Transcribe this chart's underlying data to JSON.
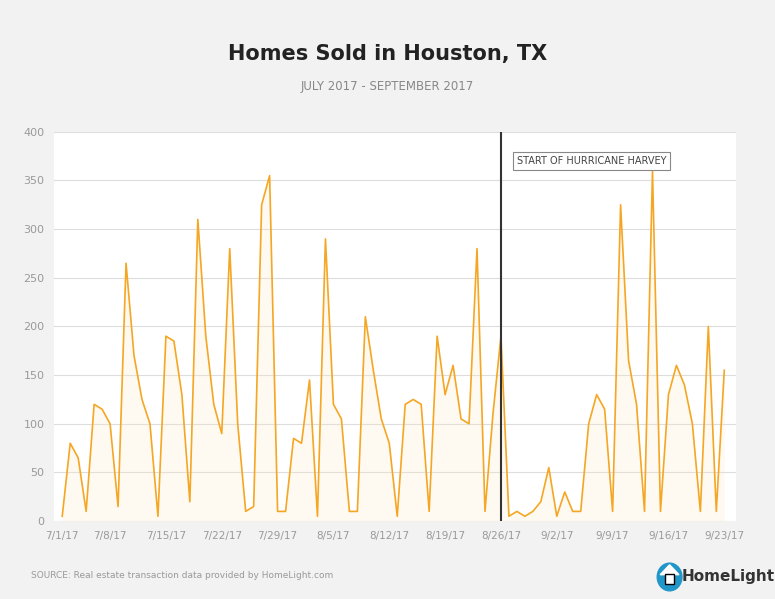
{
  "title": "Homes Sold in Houston, TX",
  "subtitle": "JULY 2017 - SEPTEMBER 2017",
  "source_text": "SOURCE: Real estate transaction data provided by HomeLight.com",
  "line_color": "#F5A623",
  "fill_color": "#FDEBC8",
  "harvey_line_color": "#333333",
  "background_color": "#FFFFFF",
  "outer_background": "#F2F2F2",
  "ylim": [
    0,
    400
  ],
  "yticks": [
    0,
    50,
    100,
    150,
    200,
    250,
    300,
    350,
    400
  ],
  "harvey_date_index": 55,
  "annotation_text": "START OF HURRICANE HARVEY",
  "x_tick_labels": [
    "7/1/17",
    "7/8/17",
    "7/15/17",
    "7/22/17",
    "7/29/17",
    "8/5/17",
    "8/12/17",
    "8/19/17",
    "8/26/17",
    "9/2/17",
    "9/9/17",
    "9/16/17",
    "9/23/17"
  ],
  "tick_positions": [
    0,
    6,
    13,
    20,
    27,
    34,
    41,
    48,
    55,
    62,
    69,
    76,
    83
  ],
  "values": [
    5,
    80,
    65,
    10,
    120,
    115,
    100,
    15,
    265,
    170,
    125,
    100,
    5,
    190,
    185,
    130,
    20,
    310,
    190,
    120,
    90,
    280,
    100,
    10,
    15,
    325,
    355,
    10,
    10,
    85,
    80,
    145,
    5,
    290,
    120,
    105,
    10,
    10,
    210,
    155,
    105,
    80,
    5,
    120,
    125,
    120,
    10,
    190,
    130,
    160,
    105,
    100,
    280,
    10,
    110,
    190,
    5,
    10,
    5,
    10,
    20,
    55,
    5,
    30,
    10,
    10,
    100,
    130,
    115,
    10,
    325,
    165,
    120,
    10,
    360,
    10,
    130,
    160,
    140,
    100,
    10,
    200,
    10,
    155
  ]
}
